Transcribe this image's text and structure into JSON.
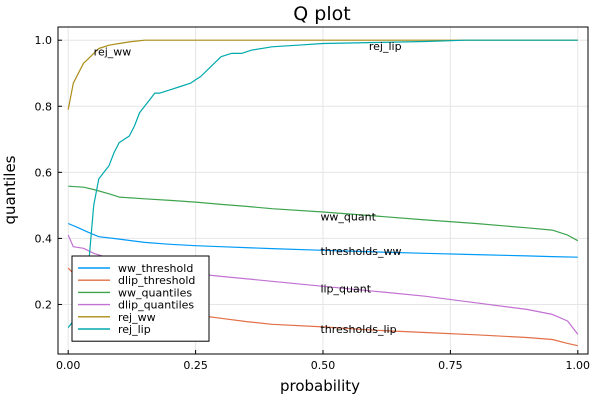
{
  "chart_data": {
    "type": "line",
    "title": "Q plot",
    "xlabel": "probability",
    "ylabel": "quantiles",
    "xlim": [
      -0.02,
      1.02
    ],
    "ylim": [
      0.05,
      1.04
    ],
    "xticks": [
      0.0,
      0.25,
      0.5,
      0.75,
      1.0
    ],
    "xtick_labels": [
      "0.00",
      "0.25",
      "0.50",
      "0.75",
      "1.00"
    ],
    "yticks": [
      0.2,
      0.4,
      0.6,
      0.8,
      1.0
    ],
    "ytick_labels": [
      "0.2",
      "0.4",
      "0.6",
      "0.8",
      "1.0"
    ],
    "grid": true,
    "legend_position": "bottom-left",
    "series": [
      {
        "name": "ww_threshold",
        "color": "#009af9",
        "x": [
          0.0,
          0.02,
          0.04,
          0.06,
          0.1,
          0.15,
          0.2,
          0.25,
          0.3,
          0.4,
          0.5,
          0.6,
          0.7,
          0.8,
          0.9,
          0.95,
          1.0
        ],
        "y": [
          0.445,
          0.432,
          0.418,
          0.405,
          0.398,
          0.388,
          0.382,
          0.378,
          0.375,
          0.369,
          0.364,
          0.359,
          0.355,
          0.351,
          0.347,
          0.345,
          0.343
        ]
      },
      {
        "name": "dlip_threshold",
        "color": "#e26f46",
        "x": [
          0.0,
          0.03,
          0.05,
          0.1,
          0.15,
          0.2,
          0.25,
          0.3,
          0.35,
          0.4,
          0.5,
          0.6,
          0.7,
          0.8,
          0.9,
          0.95,
          0.98,
          1.0
        ],
        "y": [
          0.31,
          0.262,
          0.24,
          0.212,
          0.19,
          0.178,
          0.168,
          0.158,
          0.148,
          0.14,
          0.132,
          0.122,
          0.115,
          0.108,
          0.1,
          0.094,
          0.082,
          0.075
        ]
      },
      {
        "name": "ww_quantiles",
        "color": "#3da44d",
        "x": [
          0.0,
          0.03,
          0.05,
          0.08,
          0.1,
          0.15,
          0.2,
          0.25,
          0.3,
          0.35,
          0.4,
          0.5,
          0.6,
          0.7,
          0.8,
          0.9,
          0.95,
          0.98,
          1.0
        ],
        "y": [
          0.558,
          0.555,
          0.548,
          0.535,
          0.525,
          0.52,
          0.515,
          0.51,
          0.503,
          0.497,
          0.49,
          0.48,
          0.468,
          0.456,
          0.445,
          0.432,
          0.425,
          0.41,
          0.393
        ]
      },
      {
        "name": "dlip_quantiles",
        "color": "#c271d2",
        "x": [
          0.0,
          0.01,
          0.03,
          0.05,
          0.08,
          0.1,
          0.15,
          0.2,
          0.25,
          0.3,
          0.4,
          0.5,
          0.6,
          0.7,
          0.8,
          0.9,
          0.95,
          0.98,
          1.0
        ],
        "y": [
          0.41,
          0.375,
          0.37,
          0.355,
          0.34,
          0.33,
          0.315,
          0.303,
          0.293,
          0.285,
          0.27,
          0.255,
          0.24,
          0.225,
          0.205,
          0.185,
          0.17,
          0.15,
          0.11
        ]
      },
      {
        "name": "rej_ww",
        "color": "#ac8d18",
        "x": [
          0.0,
          0.01,
          0.02,
          0.03,
          0.04,
          0.05,
          0.06,
          0.08,
          0.1,
          0.12,
          0.15,
          0.2,
          0.3,
          0.5,
          0.8,
          1.0
        ],
        "y": [
          0.79,
          0.87,
          0.9,
          0.93,
          0.945,
          0.96,
          0.975,
          0.985,
          0.99,
          0.995,
          1.0,
          1.0,
          1.0,
          1.0,
          1.0,
          1.0
        ]
      },
      {
        "name": "rej_lip",
        "color": "#00a9ad",
        "x": [
          0.0,
          0.02,
          0.04,
          0.05,
          0.06,
          0.07,
          0.08,
          0.09,
          0.1,
          0.11,
          0.12,
          0.13,
          0.14,
          0.15,
          0.16,
          0.17,
          0.18,
          0.2,
          0.22,
          0.24,
          0.25,
          0.26,
          0.28,
          0.3,
          0.32,
          0.34,
          0.36,
          0.4,
          0.45,
          0.5,
          0.6,
          0.7,
          0.78,
          0.8,
          1.0
        ],
        "y": [
          0.13,
          0.17,
          0.32,
          0.5,
          0.58,
          0.6,
          0.62,
          0.66,
          0.69,
          0.7,
          0.71,
          0.74,
          0.78,
          0.8,
          0.82,
          0.84,
          0.84,
          0.85,
          0.86,
          0.87,
          0.88,
          0.89,
          0.92,
          0.95,
          0.96,
          0.96,
          0.97,
          0.98,
          0.985,
          0.99,
          0.993,
          0.996,
          1.0,
          1.0,
          1.0
        ]
      }
    ],
    "annotations": [
      {
        "text": "rej_ww",
        "x": 0.05,
        "y": 0.966
      },
      {
        "text": "rej_lip",
        "x": 0.59,
        "y": 0.983
      },
      {
        "text": "ww_quant",
        "x": 0.495,
        "y": 0.467
      },
      {
        "text": "thresholds_ww",
        "x": 0.495,
        "y": 0.362
      },
      {
        "text": "lip_quant",
        "x": 0.495,
        "y": 0.248
      },
      {
        "text": "thresholds_lip",
        "x": 0.495,
        "y": 0.125
      }
    ]
  }
}
